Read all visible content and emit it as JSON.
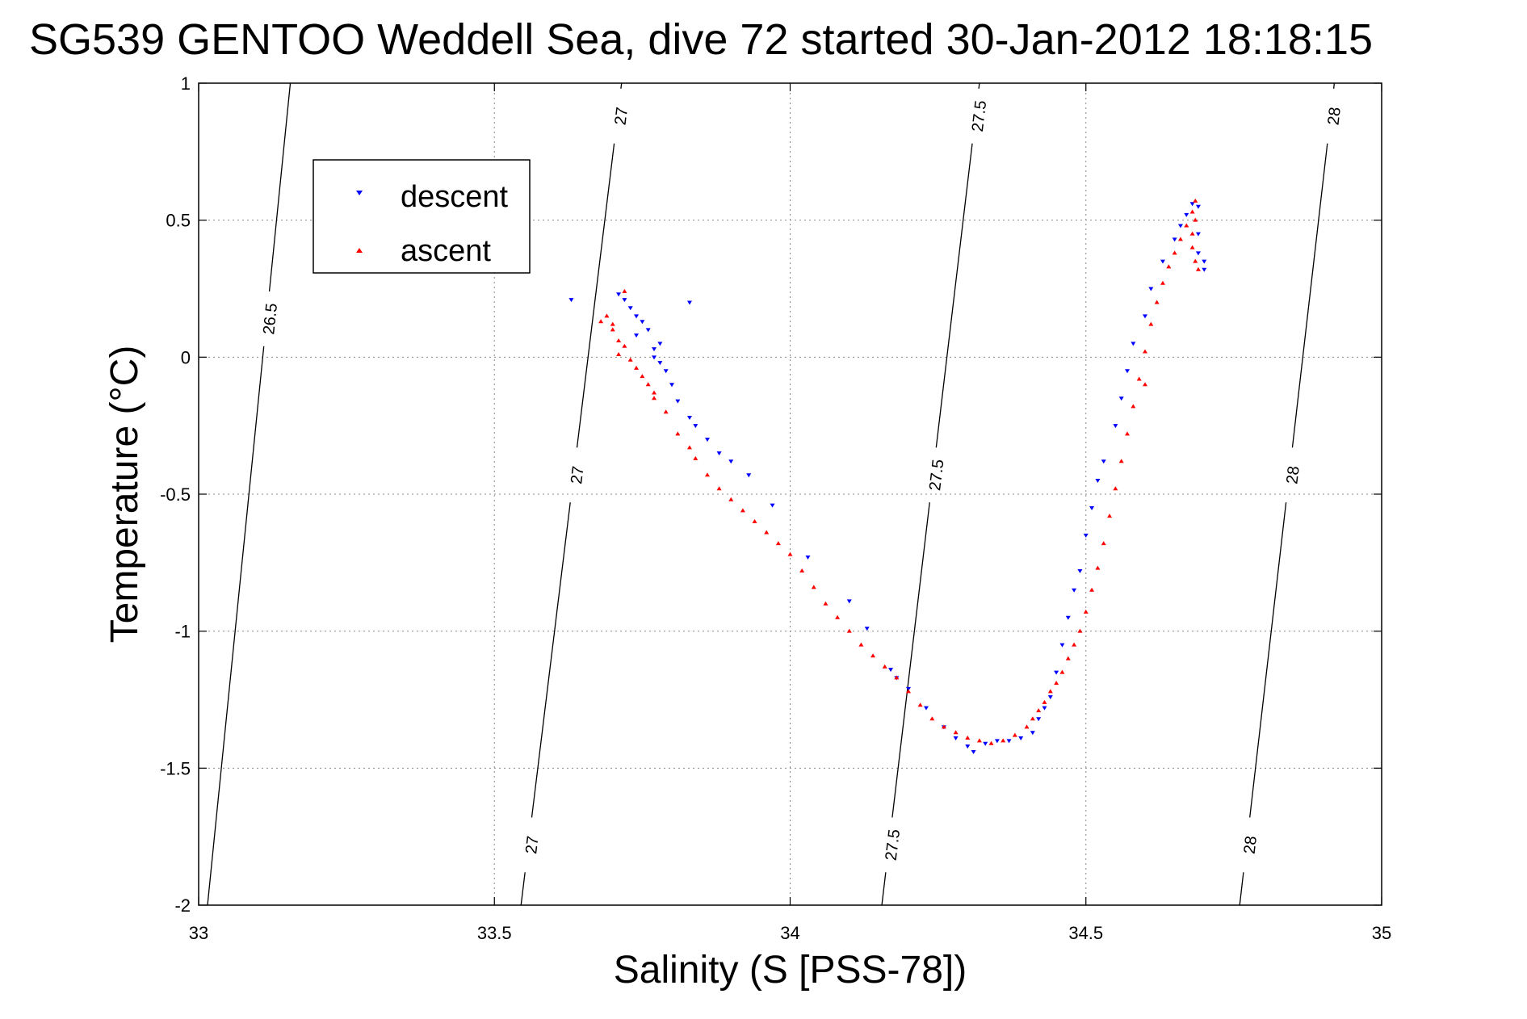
{
  "chart_data": {
    "type": "scatter",
    "title": "SG539 GENTOO Weddell Sea, dive 72 started 30-Jan-2012 18:18:15",
    "xlabel": "Salinity (S [PSS-78])",
    "ylabel": "Temperature (°C)",
    "xlim": [
      33,
      35
    ],
    "ylim": [
      -2,
      1
    ],
    "xticks": [
      "33",
      "33.5",
      "34",
      "34.5",
      "35"
    ],
    "yticks": [
      "1",
      "0.5",
      "0",
      "-0.5",
      "-1",
      "-1.5",
      "-2"
    ],
    "grid": true,
    "legend": "top-left",
    "isopycnal_labels": {
      "c265": "26.5",
      "c27": "27",
      "c275": "27.5",
      "c28": "28"
    },
    "series": [
      {
        "name": "descent",
        "color": "#0000ff",
        "marker": "triangle-down",
        "points": [
          [
            33.63,
            0.21
          ],
          [
            33.71,
            0.23
          ],
          [
            33.72,
            0.21
          ],
          [
            33.73,
            0.18
          ],
          [
            33.74,
            0.15
          ],
          [
            33.75,
            0.13
          ],
          [
            33.76,
            0.1
          ],
          [
            33.74,
            0.08
          ],
          [
            33.78,
            0.05
          ],
          [
            33.77,
            0.03
          ],
          [
            33.77,
            0.0
          ],
          [
            33.78,
            -0.02
          ],
          [
            33.79,
            -0.05
          ],
          [
            33.8,
            -0.1
          ],
          [
            33.81,
            -0.16
          ],
          [
            33.83,
            -0.22
          ],
          [
            33.84,
            -0.25
          ],
          [
            33.86,
            -0.3
          ],
          [
            33.88,
            -0.35
          ],
          [
            33.9,
            -0.38
          ],
          [
            33.93,
            -0.43
          ],
          [
            33.97,
            -0.54
          ],
          [
            34.03,
            -0.73
          ],
          [
            34.1,
            -0.89
          ],
          [
            34.13,
            -0.99
          ],
          [
            34.17,
            -1.14
          ],
          [
            34.18,
            -1.17
          ],
          [
            34.2,
            -1.21
          ],
          [
            34.23,
            -1.28
          ],
          [
            34.26,
            -1.35
          ],
          [
            34.28,
            -1.39
          ],
          [
            34.3,
            -1.42
          ],
          [
            34.31,
            -1.44
          ],
          [
            34.33,
            -1.41
          ],
          [
            34.35,
            -1.4
          ],
          [
            34.37,
            -1.4
          ],
          [
            34.39,
            -1.39
          ],
          [
            34.41,
            -1.37
          ],
          [
            34.42,
            -1.32
          ],
          [
            34.43,
            -1.28
          ],
          [
            34.44,
            -1.24
          ],
          [
            34.45,
            -1.15
          ],
          [
            34.46,
            -1.05
          ],
          [
            34.47,
            -0.95
          ],
          [
            34.48,
            -0.85
          ],
          [
            34.49,
            -0.78
          ],
          [
            34.5,
            -0.65
          ],
          [
            34.51,
            -0.55
          ],
          [
            34.52,
            -0.45
          ],
          [
            34.53,
            -0.38
          ],
          [
            34.55,
            -0.25
          ],
          [
            34.56,
            -0.15
          ],
          [
            34.57,
            -0.05
          ],
          [
            34.58,
            0.05
          ],
          [
            34.6,
            0.15
          ],
          [
            34.61,
            0.25
          ],
          [
            34.63,
            0.35
          ],
          [
            34.65,
            0.43
          ],
          [
            34.66,
            0.48
          ],
          [
            34.67,
            0.52
          ],
          [
            34.68,
            0.56
          ],
          [
            34.69,
            0.55
          ],
          [
            34.69,
            0.45
          ],
          [
            34.69,
            0.38
          ],
          [
            34.7,
            0.35
          ],
          [
            34.7,
            0.32
          ],
          [
            33.83,
            0.2
          ]
        ]
      },
      {
        "name": "ascent",
        "color": "#ff0000",
        "marker": "triangle-up",
        "points": [
          [
            33.72,
            0.24
          ],
          [
            33.69,
            0.15
          ],
          [
            33.7,
            0.12
          ],
          [
            33.7,
            0.1
          ],
          [
            33.71,
            0.06
          ],
          [
            33.72,
            0.04
          ],
          [
            33.71,
            0.01
          ],
          [
            33.73,
            -0.01
          ],
          [
            33.74,
            -0.04
          ],
          [
            33.75,
            -0.07
          ],
          [
            33.76,
            -0.1
          ],
          [
            33.77,
            -0.13
          ],
          [
            33.77,
            -0.15
          ],
          [
            33.79,
            -0.2
          ],
          [
            33.81,
            -0.28
          ],
          [
            33.83,
            -0.33
          ],
          [
            33.84,
            -0.37
          ],
          [
            33.86,
            -0.43
          ],
          [
            33.88,
            -0.48
          ],
          [
            33.9,
            -0.52
          ],
          [
            33.92,
            -0.56
          ],
          [
            33.94,
            -0.6
          ],
          [
            33.96,
            -0.64
          ],
          [
            33.98,
            -0.68
          ],
          [
            34.0,
            -0.72
          ],
          [
            34.02,
            -0.78
          ],
          [
            34.04,
            -0.84
          ],
          [
            34.06,
            -0.9
          ],
          [
            34.08,
            -0.95
          ],
          [
            34.1,
            -1.0
          ],
          [
            34.12,
            -1.05
          ],
          [
            34.14,
            -1.09
          ],
          [
            34.16,
            -1.13
          ],
          [
            34.18,
            -1.17
          ],
          [
            34.2,
            -1.22
          ],
          [
            34.22,
            -1.27
          ],
          [
            34.24,
            -1.32
          ],
          [
            34.26,
            -1.35
          ],
          [
            34.28,
            -1.37
          ],
          [
            34.3,
            -1.39
          ],
          [
            34.32,
            -1.4
          ],
          [
            34.34,
            -1.41
          ],
          [
            34.36,
            -1.4
          ],
          [
            34.38,
            -1.38
          ],
          [
            34.4,
            -1.35
          ],
          [
            34.41,
            -1.32
          ],
          [
            34.42,
            -1.29
          ],
          [
            34.43,
            -1.26
          ],
          [
            34.44,
            -1.22
          ],
          [
            34.45,
            -1.19
          ],
          [
            34.46,
            -1.15
          ],
          [
            34.47,
            -1.1
          ],
          [
            34.48,
            -1.05
          ],
          [
            34.49,
            -1.0
          ],
          [
            34.5,
            -0.93
          ],
          [
            34.51,
            -0.85
          ],
          [
            34.52,
            -0.77
          ],
          [
            34.53,
            -0.68
          ],
          [
            34.54,
            -0.58
          ],
          [
            34.55,
            -0.48
          ],
          [
            34.56,
            -0.38
          ],
          [
            34.57,
            -0.28
          ],
          [
            34.58,
            -0.18
          ],
          [
            34.59,
            -0.08
          ],
          [
            34.6,
            0.02
          ],
          [
            34.61,
            0.12
          ],
          [
            34.62,
            0.2
          ],
          [
            34.63,
            0.27
          ],
          [
            34.64,
            0.33
          ],
          [
            34.65,
            0.38
          ],
          [
            34.66,
            0.43
          ],
          [
            34.67,
            0.48
          ],
          [
            34.68,
            0.53
          ],
          [
            34.685,
            0.57
          ],
          [
            34.685,
            0.5
          ],
          [
            34.68,
            0.45
          ],
          [
            34.68,
            0.4
          ],
          [
            34.685,
            0.35
          ],
          [
            34.69,
            0.32
          ],
          [
            34.6,
            -0.1
          ],
          [
            33.68,
            0.13
          ]
        ]
      }
    ]
  }
}
